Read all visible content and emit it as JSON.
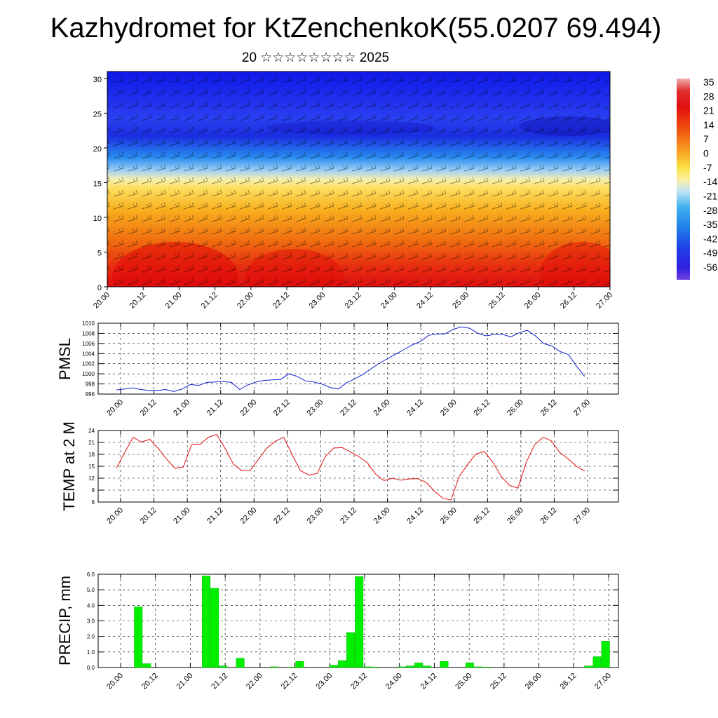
{
  "title": "Kazhydromet for KtZenchenkoK(55.0207 69.494)",
  "subtitle": "20 ☆☆☆☆☆☆☆☆ 2025",
  "colors": {
    "pmsl_line": "#1020d0",
    "temp_line": "#e01010",
    "precip_bar": "#00ee00"
  },
  "time_ticks": [
    "20.00",
    "20.12",
    "21.00",
    "21.12",
    "22.00",
    "22.12",
    "23.00",
    "23.12",
    "24.00",
    "24.12",
    "25.00",
    "25.12",
    "26.00",
    "26.12",
    "27.00"
  ],
  "colorbar": {
    "labels": [
      "35",
      "28",
      "21",
      "14",
      "7",
      "0",
      "-7",
      "-14",
      "-21",
      "-28",
      "-35",
      "-42",
      "-49",
      "-56"
    ]
  },
  "chart_data": [
    {
      "type": "heatmap",
      "x": "time_ticks",
      "y_ticks": [
        "0",
        "5",
        "10",
        "15",
        "20",
        "25",
        "30"
      ],
      "ylim": [
        0,
        31
      ],
      "description_values": "temperature field vs height with wind barbs; warm (+35) near ground, cold (-56) aloft"
    },
    {
      "type": "line",
      "ylabel": "PMSL",
      "y_ticks": [
        "996",
        "998",
        "1000",
        "1002",
        "1004",
        "1006",
        "1008",
        "1010"
      ],
      "ylim": [
        996,
        1010
      ],
      "values": [
        996.8,
        997.0,
        997.2,
        996.9,
        996.7,
        996.7,
        996.9,
        996.5,
        997.0,
        997.9,
        997.7,
        998.3,
        998.4,
        998.5,
        998.3,
        996.9,
        997.8,
        998.4,
        998.7,
        998.8,
        998.9,
        1000.0,
        999.5,
        998.6,
        998.4,
        998.0,
        997.3,
        997.0,
        998.2,
        999.0,
        999.9,
        1001.0,
        1002.1,
        1003.0,
        1003.9,
        1004.8,
        1005.7,
        1006.4,
        1007.6,
        1007.9,
        1007.9,
        1008.8,
        1009.3,
        1009.0,
        1008.0,
        1007.5,
        1007.8,
        1007.8,
        1007.3,
        1008.1,
        1008.6,
        1007.5,
        1006.0,
        1005.5,
        1004.4,
        1003.8,
        1001.5,
        999.5
      ]
    },
    {
      "type": "line",
      "ylabel": "TEMP at 2 M",
      "y_ticks": [
        "6",
        "9",
        "12",
        "15",
        "18",
        "21",
        "24"
      ],
      "ylim": [
        6,
        24
      ],
      "values": [
        14.5,
        18.5,
        22.3,
        21.1,
        21.8,
        19.5,
        16.8,
        14.5,
        14.8,
        20.5,
        20.5,
        22.3,
        23.0,
        19.5,
        15.5,
        13.9,
        14.0,
        16.8,
        19.6,
        21.3,
        22.3,
        18.0,
        13.9,
        12.8,
        13.2,
        17.5,
        19.6,
        19.7,
        18.6,
        17.4,
        15.9,
        13.0,
        11.4,
        12.0,
        11.5,
        11.8,
        11.9,
        11.0,
        8.8,
        7.0,
        6.5,
        12.5,
        15.5,
        18.1,
        18.7,
        16.0,
        12.5,
        10.2,
        9.5,
        16.0,
        20.4,
        22.3,
        21.4,
        18.5,
        16.9,
        15.0,
        13.8
      ]
    },
    {
      "type": "bar",
      "ylabel": "PRECIP, mm",
      "y_ticks": [
        "0.0",
        "1.0",
        "2.0",
        "3.0",
        "4.0",
        "5.0",
        "6.0"
      ],
      "ylim": [
        0,
        6
      ],
      "values": [
        0,
        0,
        0,
        3.9,
        0.25,
        0,
        0,
        0,
        0,
        0,
        0,
        5.9,
        5.1,
        0.1,
        0,
        0.6,
        0,
        0,
        0,
        0.05,
        0,
        0.03,
        0.4,
        0,
        0,
        0,
        0.15,
        0.45,
        2.25,
        5.85,
        0.05,
        0.03,
        0,
        0,
        0.05,
        0.1,
        0.3,
        0.1,
        0,
        0.4,
        0,
        0,
        0.3,
        0.05,
        0.03,
        0,
        0,
        0,
        0,
        0,
        0,
        0,
        0,
        0,
        0,
        0,
        0.1,
        0.7,
        1.7
      ]
    }
  ]
}
